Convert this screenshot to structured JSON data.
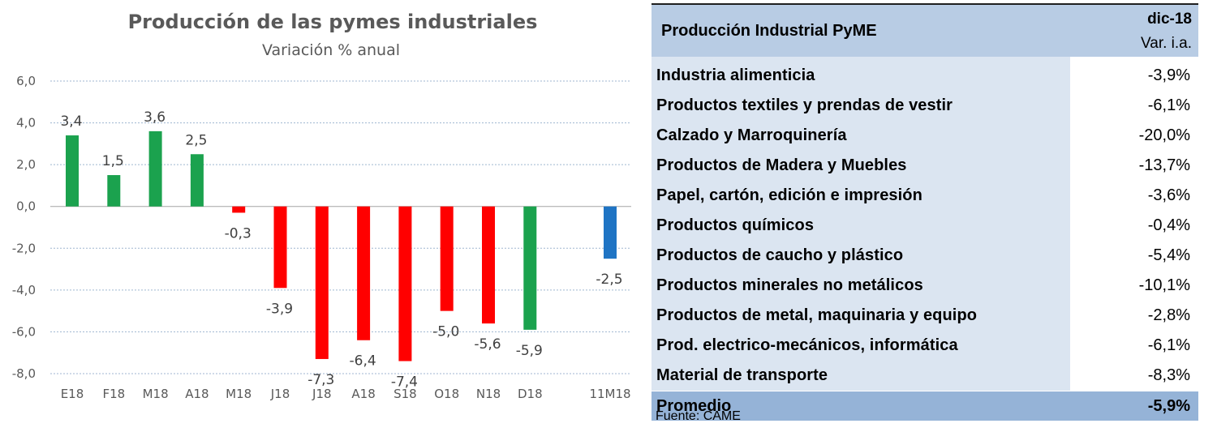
{
  "chart_data": {
    "type": "bar",
    "title": "Producción de las pymes industriales",
    "subtitle": "Variación % anual",
    "categories": [
      "E18",
      "F18",
      "M18",
      "A18",
      "M18",
      "J18",
      "J18",
      "A18",
      "S18",
      "O18",
      "N18",
      "D18",
      "11M18"
    ],
    "values": [
      3.4,
      1.5,
      3.6,
      2.5,
      -0.3,
      -3.9,
      -7.3,
      -6.4,
      -7.4,
      -5.0,
      -5.6,
      -5.9,
      -2.5
    ],
    "value_labels": [
      "3,4",
      "1,5",
      "3,6",
      "2,5",
      "-0,3",
      "-3,9",
      "-7,3",
      "-6,4",
      "-7,4",
      "-5,0",
      "-5,6",
      "-5,9",
      "-2,5"
    ],
    "bar_colors": [
      "#1ba24e",
      "#1ba24e",
      "#1ba24e",
      "#1ba24e",
      "#ff0000",
      "#ff0000",
      "#ff0000",
      "#ff0000",
      "#ff0000",
      "#ff0000",
      "#ff0000",
      "#1ba24e",
      "#1f74c4"
    ],
    "y_ticks": [
      "6,0",
      "4,0",
      "2,0",
      "0,0",
      "-2,0",
      "-4,0",
      "-6,0",
      "-8,0"
    ],
    "y_tick_values": [
      6,
      4,
      2,
      0,
      -2,
      -4,
      -6,
      -8
    ],
    "ylim": [
      -8,
      6
    ],
    "grid": true,
    "xlabel": "",
    "ylabel": ""
  },
  "table": {
    "header_title": "Producción Industrial PyME",
    "header_period": "dic-18",
    "header_unit": "Var. i.a.",
    "rows": [
      {
        "label": "Industria alimenticia",
        "value": "-3,9%"
      },
      {
        "label": "Productos textiles y prendas de vestir",
        "value": "-6,1%"
      },
      {
        "label": "Calzado y Marroquinería",
        "value": "-20,0%"
      },
      {
        "label": "Productos de Madera y Muebles",
        "value": "-13,7%"
      },
      {
        "label": "Papel, cartón, edición e impresión",
        "value": "-3,6%"
      },
      {
        "label": "Productos químicos",
        "value": "-0,4%"
      },
      {
        "label": "Productos de caucho y plástico",
        "value": "-5,4%"
      },
      {
        "label": "Productos minerales no metálicos",
        "value": "-10,1%"
      },
      {
        "label": "Productos de metal, maquinaria y equipo",
        "value": "-2,8%"
      },
      {
        "label": "Prod. electrico-mecánicos, informática",
        "value": "-6,1%"
      },
      {
        "label": "Material de transporte",
        "value": "-8,3%"
      }
    ],
    "average_label": "Promedio",
    "average_value": "-5,9%",
    "source": "Fuente: CAME"
  }
}
